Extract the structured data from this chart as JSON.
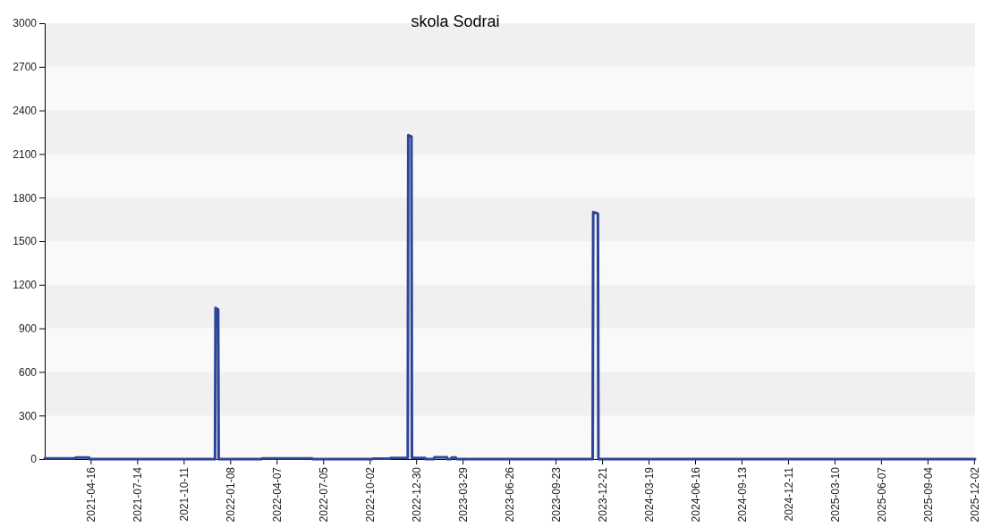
{
  "chart_data": {
    "type": "line",
    "title": "skola Sodrai",
    "x": [
      "2021-01-18",
      "2021-03-17",
      "2021-03-18",
      "2021-04-13",
      "2021-04-14",
      "2021-12-10",
      "2021-12-11",
      "2021-12-16",
      "2021-12-17",
      "2022-03-09",
      "2022-03-10",
      "2022-06-14",
      "2022-06-15",
      "2022-10-07",
      "2022-10-08",
      "2022-11-10",
      "2022-11-11",
      "2022-12-14",
      "2022-12-15",
      "2022-12-21",
      "2022-12-22",
      "2023-01-16",
      "2023-01-17",
      "2023-02-02",
      "2023-02-03",
      "2023-02-27",
      "2023-02-28",
      "2023-03-07",
      "2023-03-08",
      "2023-03-16",
      "2023-03-17",
      "2023-12-03",
      "2023-12-04",
      "2023-12-13",
      "2023-12-14",
      "2025-12-04"
    ],
    "series": [
      {
        "color": "#2e4399",
        "values": [
          5,
          5,
          10,
          10,
          0,
          0,
          1040,
          1030,
          0,
          0,
          5,
          5,
          0,
          0,
          3,
          3,
          8,
          8,
          2230,
          2220,
          8,
          8,
          0,
          0,
          12,
          12,
          0,
          0,
          10,
          10,
          0,
          0,
          1700,
          1690,
          0,
          0
        ]
      }
    ],
    "xlim": [
      "2021-01-18",
      "2025-12-04"
    ],
    "xticks": [
      "2021-04-16",
      "2021-07-14",
      "2021-10-11",
      "2022-01-08",
      "2022-04-07",
      "2022-07-05",
      "2022-10-02",
      "2022-12-30",
      "2023-03-29",
      "2023-06-26",
      "2023-09-23",
      "2023-12-21",
      "2024-03-19",
      "2024-06-16",
      "2024-09-13",
      "2024-12-11",
      "2025-03-10",
      "2025-06-07",
      "2025-09-04",
      "2025-12-02"
    ],
    "ylim": [
      0,
      3000
    ],
    "yticks": [
      0,
      300,
      600,
      900,
      1200,
      1500,
      1800,
      2100,
      2400,
      2700,
      3000
    ],
    "bands": [
      {
        "axis": "y",
        "from": 300,
        "to": 600,
        "color": "#f0f0f0"
      },
      {
        "axis": "y",
        "from": 900,
        "to": 1200,
        "color": "#f0f0f0"
      },
      {
        "axis": "y",
        "from": 1500,
        "to": 1800,
        "color": "#f0f0f0"
      },
      {
        "axis": "y",
        "from": 2100,
        "to": 2400,
        "color": "#f0f0f0"
      },
      {
        "axis": "y",
        "from": 2700,
        "to": 3000,
        "color": "#f0f0f0"
      }
    ]
  }
}
